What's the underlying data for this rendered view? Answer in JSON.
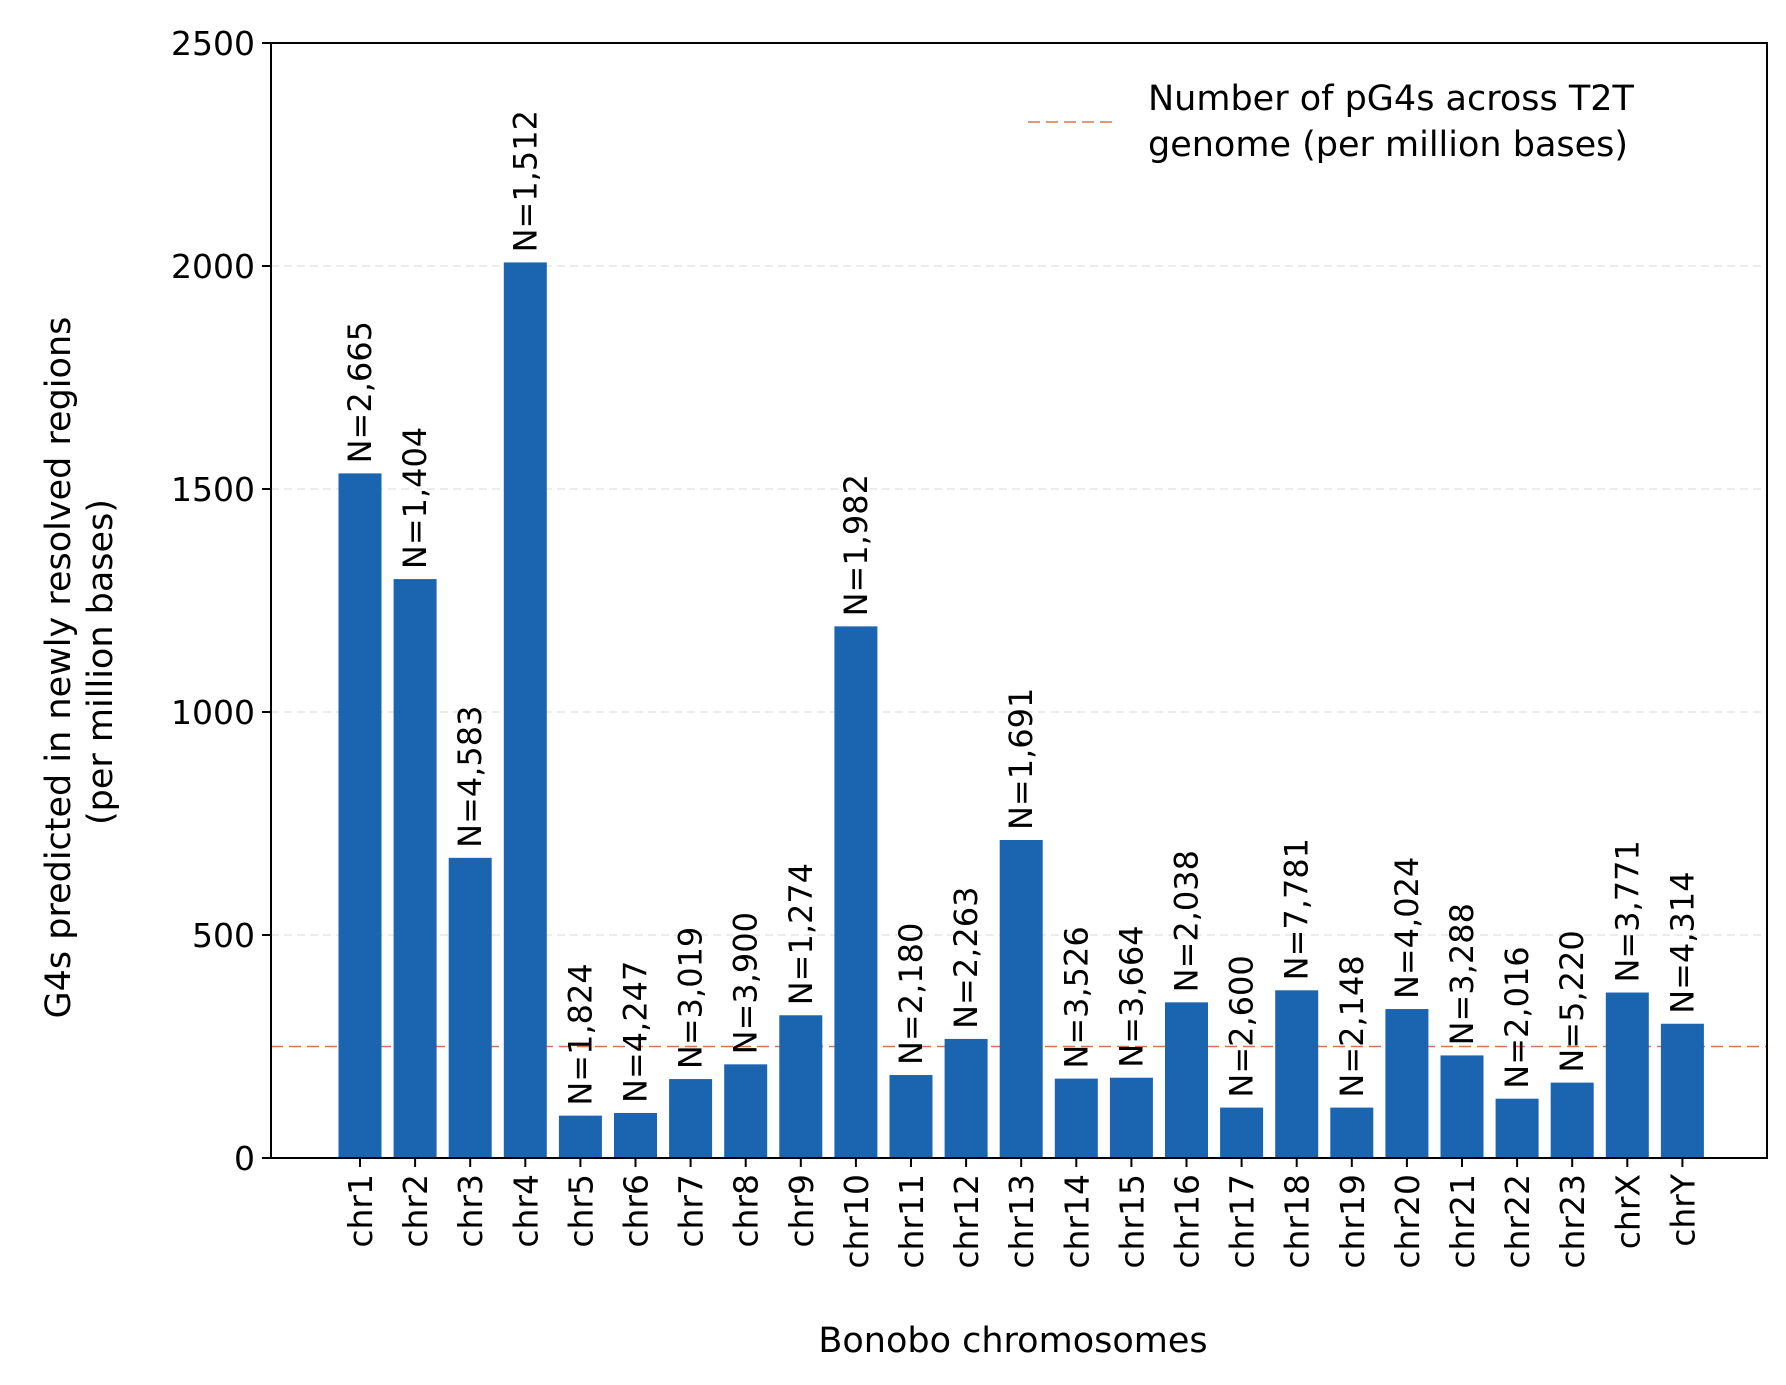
{
  "chart_data": {
    "type": "bar",
    "xlabel": "Bonobo chromosomes",
    "ylabel_lines": [
      "G4s predicted in newly resolved regions",
      "(per million bases)"
    ],
    "ylim": [
      0,
      2500
    ],
    "yticks": [
      0,
      500,
      1000,
      1500,
      2000,
      2500
    ],
    "grid": "horizontal dashed (y)",
    "categories": [
      "chr1",
      "chr2",
      "chr3",
      "chr4",
      "chr5",
      "chr6",
      "chr7",
      "chr8",
      "chr9",
      "chr10",
      "chr11",
      "chr12",
      "chr13",
      "chr14",
      "chr15",
      "chr16",
      "chr17",
      "chr18",
      "chr19",
      "chr20",
      "chr21",
      "chr22",
      "chr23",
      "chrX",
      "chrY"
    ],
    "values": [
      1535,
      1298,
      673,
      2008,
      95,
      101,
      177,
      210,
      320,
      1192,
      186,
      267,
      713,
      178,
      180,
      349,
      113,
      376,
      113,
      334,
      230,
      133,
      169,
      371,
      301
    ],
    "bar_labels": [
      "N=2,665",
      "N=1,404",
      "N=4,583",
      "N=1,512",
      "N=1,824",
      "N=4,247",
      "N=3,019",
      "N=3,900",
      "N=1,274",
      "N=1,982",
      "N=2,180",
      "N=2,263",
      "N=1,691",
      "N=3,526",
      "N=3,664",
      "N=2,038",
      "N=2,600",
      "N=7,781",
      "N=2,148",
      "N=4,024",
      "N=3,288",
      "N=2,016",
      "N=5,220",
      "N=3,771",
      "N=4,314"
    ],
    "reference_line": {
      "value": 250,
      "label_lines": [
        "Number of pG4s across T2T",
        "genome (per million bases)"
      ],
      "style": "dashed",
      "color": "#d9734f"
    },
    "legend_position": "top-right",
    "colors": {
      "bar": "#1a64b0",
      "grid": "#e6e6e6",
      "axis": "#000000"
    }
  }
}
